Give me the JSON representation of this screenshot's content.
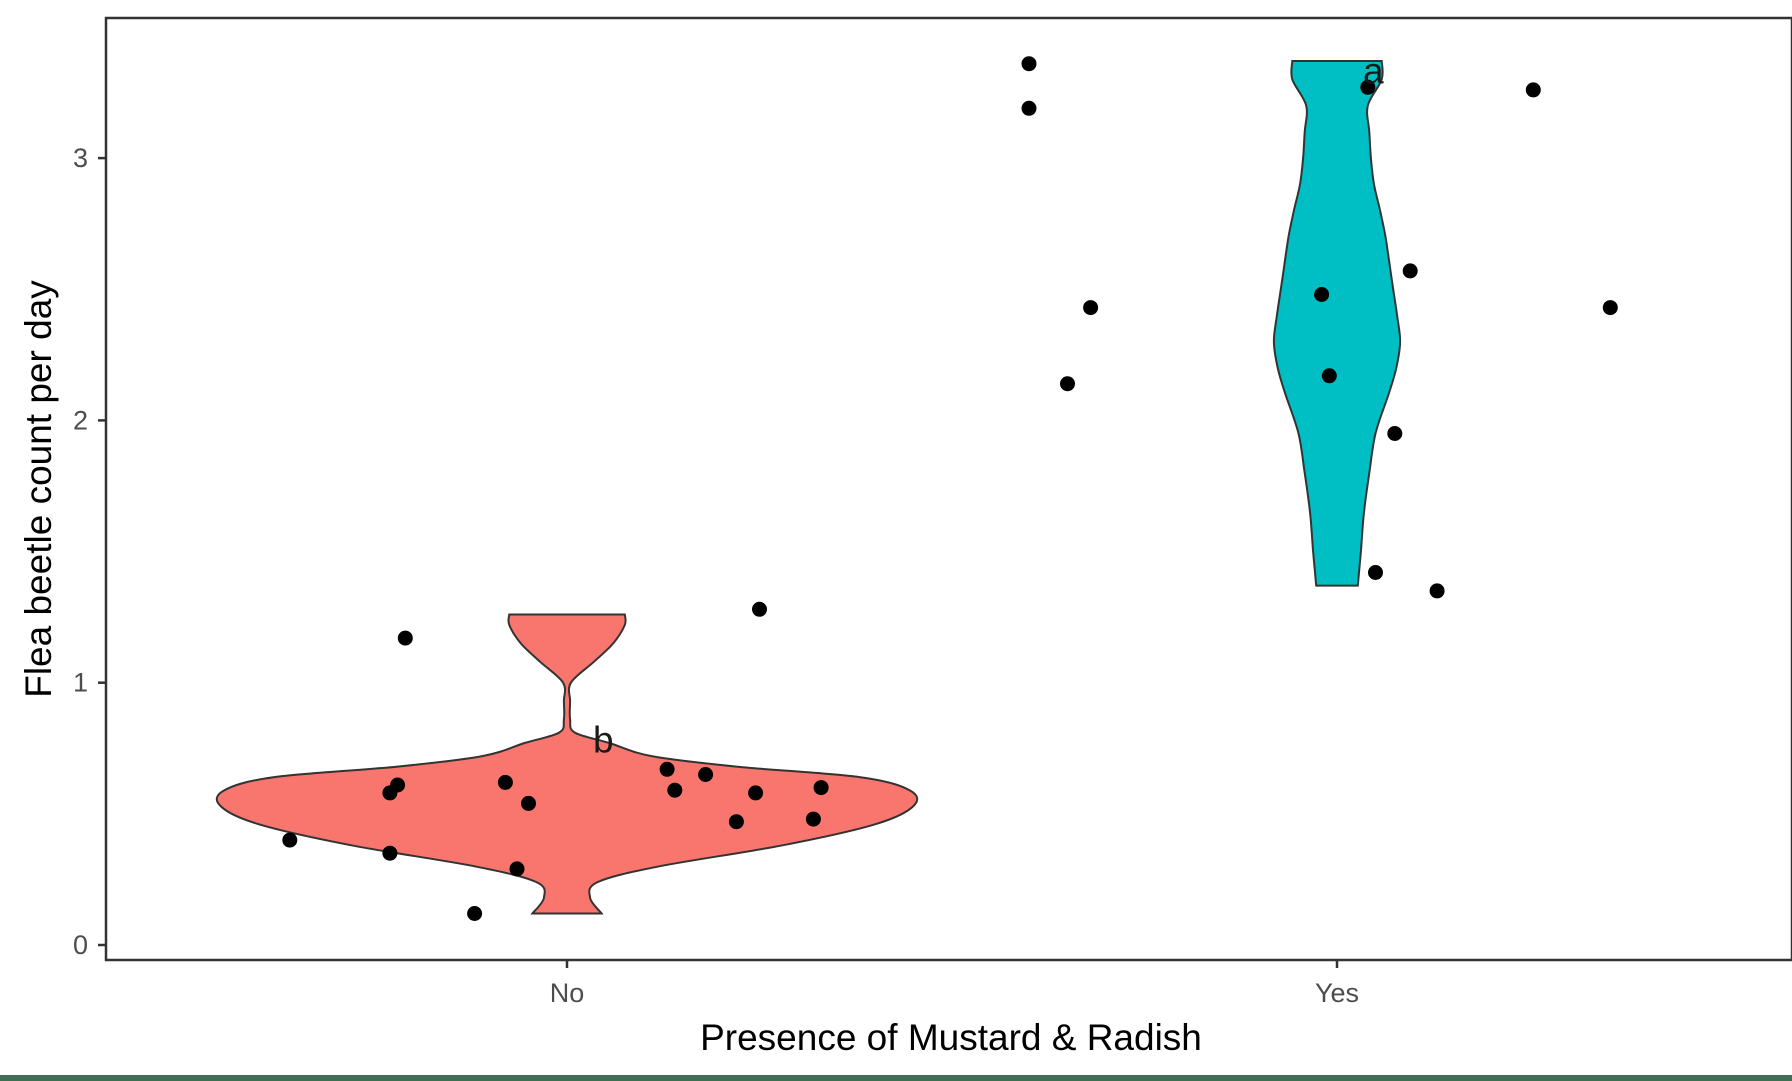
{
  "chart_data": {
    "type": "violin",
    "xlabel": "Presence of Mustard & Radish",
    "ylabel": "Flea beetle count per day",
    "categories": [
      "No",
      "Yes"
    ],
    "ylim": [
      -0.05,
      3.55
    ],
    "yticks": [
      0,
      1,
      2,
      3
    ],
    "grid": false,
    "legend": "none",
    "groups": [
      {
        "category": "No",
        "fill": "#F8766D",
        "annotation": "b",
        "annotation_y": 0.78,
        "points": [
          0.4,
          0.35,
          0.58,
          0.61,
          1.17,
          0.12,
          0.62,
          0.54,
          0.29,
          0.67,
          0.59,
          0.65,
          0.47,
          0.58,
          1.28,
          0.48,
          0.6
        ],
        "jitter": [
          -0.36,
          -0.23,
          -0.23,
          -0.22,
          -0.21,
          -0.12,
          -0.08,
          -0.05,
          -0.065,
          0.13,
          0.14,
          0.18,
          0.22,
          0.245,
          0.25,
          0.32,
          0.33
        ],
        "violin": [
          [
            0.12,
            0.045
          ],
          [
            0.18,
            0.03
          ],
          [
            0.24,
            0.04
          ],
          [
            0.3,
            0.12
          ],
          [
            0.38,
            0.28
          ],
          [
            0.46,
            0.4
          ],
          [
            0.53,
            0.45
          ],
          [
            0.59,
            0.445
          ],
          [
            0.64,
            0.38
          ],
          [
            0.68,
            0.22
          ],
          [
            0.72,
            0.11
          ],
          [
            0.77,
            0.055
          ],
          [
            0.81,
            0.01
          ],
          [
            0.86,
            0.004
          ],
          [
            0.93,
            0.004
          ],
          [
            1.0,
            0.005
          ],
          [
            1.08,
            0.035
          ],
          [
            1.15,
            0.06
          ],
          [
            1.22,
            0.075
          ],
          [
            1.26,
            0.075
          ]
        ]
      },
      {
        "category": "Yes",
        "fill": "#00BFC4",
        "annotation": "a",
        "annotation_y": 3.33,
        "points": [
          3.36,
          3.19,
          2.43,
          2.14,
          2.48,
          2.17,
          3.27,
          1.42,
          1.95,
          2.57,
          1.35,
          3.26,
          2.43
        ],
        "jitter": [
          -0.4,
          -0.4,
          -0.32,
          -0.35,
          -0.02,
          -0.01,
          0.04,
          0.05,
          0.075,
          0.095,
          0.13,
          0.255,
          0.355
        ],
        "violin": [
          [
            1.37,
            0.027
          ],
          [
            1.5,
            0.031
          ],
          [
            1.65,
            0.035
          ],
          [
            1.8,
            0.042
          ],
          [
            1.95,
            0.05
          ],
          [
            2.1,
            0.067
          ],
          [
            2.2,
            0.077
          ],
          [
            2.3,
            0.082
          ],
          [
            2.4,
            0.078
          ],
          [
            2.5,
            0.073
          ],
          [
            2.6,
            0.068
          ],
          [
            2.7,
            0.063
          ],
          [
            2.8,
            0.056
          ],
          [
            2.9,
            0.048
          ],
          [
            3.0,
            0.044
          ],
          [
            3.1,
            0.042
          ],
          [
            3.2,
            0.04
          ],
          [
            3.3,
            0.058
          ],
          [
            3.37,
            0.058
          ]
        ]
      }
    ]
  }
}
